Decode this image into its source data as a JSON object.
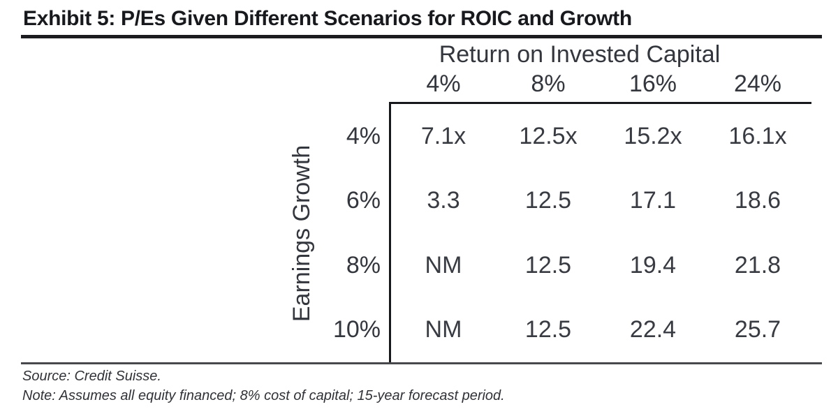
{
  "page": {
    "title": "Exhibit 5: P/Es Given Different Scenarios for ROIC and Growth"
  },
  "table": {
    "column_group_label": "Return on Invested Capital",
    "row_group_label": "Earnings Growth",
    "column_headers": [
      "4%",
      "8%",
      "16%",
      "24%"
    ],
    "row_headers": [
      "4%",
      "6%",
      "8%",
      "10%"
    ],
    "cells": [
      [
        "7.1x",
        "12.5x",
        "15.2x",
        "16.1x"
      ],
      [
        "3.3",
        "12.5",
        "17.1",
        "18.6"
      ],
      [
        "NM",
        "12.5",
        "19.4",
        "21.8"
      ],
      [
        "NM",
        "12.5",
        "22.4",
        "25.7"
      ]
    ]
  },
  "footer": {
    "source": "Source: Credit Suisse.",
    "note": "Note: Assumes all equity financed; 8% cost of capital; 15-year forecast period."
  },
  "colors": {
    "title_text": "#17191d",
    "table_text": "#33363d",
    "data_text": "#383b42",
    "heavy_rule": "#1b1c1f",
    "table_border": "#17181c",
    "light_rule": "#46484c",
    "background": "#ffffff"
  },
  "chart_data": {
    "type": "table",
    "title": "Exhibit 5: P/Es Given Different Scenarios for ROIC and Growth",
    "column_dimension": "Return on Invested Capital",
    "row_dimension": "Earnings Growth",
    "roic_levels": [
      "4%",
      "8%",
      "16%",
      "24%"
    ],
    "earnings_growth_levels": [
      "4%",
      "6%",
      "8%",
      "10%"
    ],
    "pe_values": [
      [
        "7.1x",
        "12.5x",
        "15.2x",
        "16.1x"
      ],
      [
        "3.3",
        "12.5",
        "17.1",
        "18.6"
      ],
      [
        "NM",
        "12.5",
        "19.4",
        "21.8"
      ],
      [
        "NM",
        "12.5",
        "22.4",
        "25.7"
      ]
    ],
    "source": "Source: Credit Suisse.",
    "note": "Note: Assumes all equity financed; 8% cost of capital; 15-year forecast period."
  }
}
